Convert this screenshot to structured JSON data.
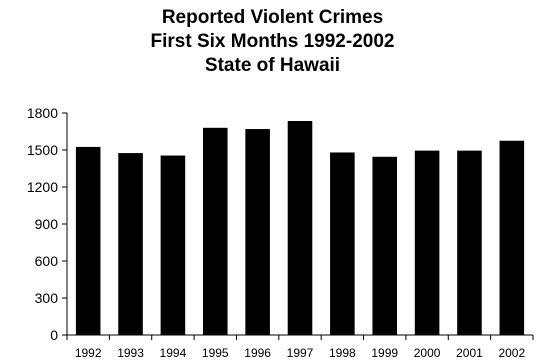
{
  "chart_data": {
    "type": "bar",
    "title_lines": [
      "Reported Violent Crimes",
      "First Six Months 1992-2002",
      "State of Hawaii"
    ],
    "categories": [
      "1992",
      "1993",
      "1994",
      "1995",
      "1996",
      "1997",
      "1998",
      "1999",
      "2000",
      "2001",
      "2002"
    ],
    "values": [
      1525,
      1475,
      1455,
      1680,
      1670,
      1735,
      1480,
      1445,
      1495,
      1495,
      1575
    ],
    "xlabel": "",
    "ylabel": "",
    "ylim": [
      0,
      1800
    ],
    "yticks": [
      0,
      300,
      600,
      900,
      1200,
      1500,
      1800
    ],
    "grid": false,
    "legend": "none",
    "colors": {
      "bar": "#000000",
      "axis": "#000000",
      "background": "#ffffff"
    }
  }
}
